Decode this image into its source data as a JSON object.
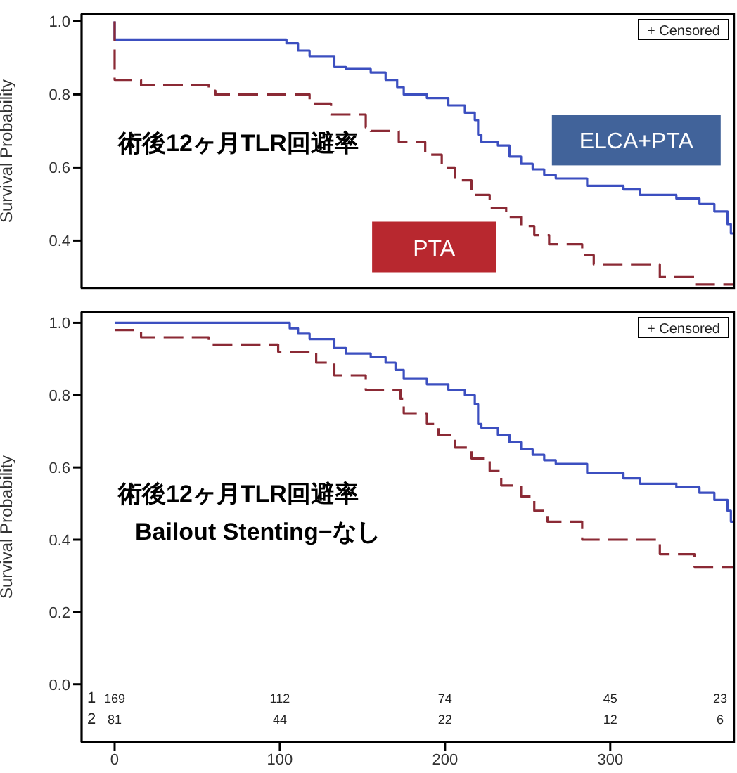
{
  "chart_data": [
    {
      "type": "step",
      "ylabel": "Survival Probability",
      "xlim": [
        -20,
        375
      ],
      "ylim": [
        0.27,
        1.02
      ],
      "yticks": [
        {
          "value": 0.4,
          "label": "0.4"
        },
        {
          "value": 0.6,
          "label": "0.6"
        },
        {
          "value": 0.8,
          "label": "0.8"
        },
        {
          "value": 1.0,
          "label": "1.0"
        }
      ],
      "tick_labels": "y",
      "annotations": [
        "+ Censored",
        "術後12ヶ月TLR回避率"
      ],
      "series": [
        {
          "name": "ELCA+PTA",
          "color": "#3c4fc0",
          "line_style": "solid",
          "x": [
            0,
            0,
            104,
            111,
            118,
            133,
            140,
            155,
            164,
            171,
            175,
            189,
            202,
            212,
            218,
            220,
            222,
            232,
            239,
            246,
            253,
            260,
            267,
            286,
            308,
            318,
            340,
            354,
            363,
            371,
            373,
            375
          ],
          "values": [
            1.0,
            0.95,
            0.94,
            0.92,
            0.905,
            0.875,
            0.87,
            0.86,
            0.84,
            0.82,
            0.8,
            0.79,
            0.77,
            0.75,
            0.73,
            0.69,
            0.67,
            0.66,
            0.63,
            0.61,
            0.595,
            0.58,
            0.57,
            0.55,
            0.54,
            0.525,
            0.515,
            0.5,
            0.48,
            0.445,
            0.42,
            0.42
          ]
        },
        {
          "name": "PTA",
          "color": "#8b2a35",
          "line_style": "dashed",
          "x": [
            0,
            0,
            16,
            57,
            61,
            118,
            131,
            152,
            155,
            172,
            188,
            198,
            206,
            216,
            227,
            237,
            246,
            254,
            263,
            283,
            290,
            330,
            351,
            375
          ],
          "values": [
            1.0,
            0.84,
            0.825,
            0.81,
            0.8,
            0.775,
            0.745,
            0.71,
            0.7,
            0.67,
            0.635,
            0.6,
            0.565,
            0.525,
            0.49,
            0.465,
            0.44,
            0.415,
            0.39,
            0.36,
            0.335,
            0.3,
            0.28,
            0.28
          ]
        }
      ]
    },
    {
      "type": "step",
      "ylabel": "Survival Probability",
      "xlim": [
        -20,
        375
      ],
      "ylim": [
        -0.16,
        1.03
      ],
      "xticks": [
        0,
        100,
        200,
        300
      ],
      "yticks": [
        {
          "value": 0,
          "label": "0.0"
        },
        {
          "value": 0.2,
          "label": "0.2"
        },
        {
          "value": 0.4,
          "label": "0.4"
        },
        {
          "value": 0.6,
          "label": "0.6"
        },
        {
          "value": 0.8,
          "label": "0.8"
        },
        {
          "value": 1.0,
          "label": "1.0"
        }
      ],
      "annotations": [
        "+ Censored",
        "術後12ヶ月TLR回避率",
        "Bailout Stenting−なし",
        "1",
        "169",
        "112",
        "74",
        "45",
        "23",
        "2",
        "81",
        "44",
        "22",
        "12",
        "6"
      ],
      "series": [
        {
          "color": "#3c4fc0",
          "line_style": "solid",
          "x": [
            0,
            106,
            111,
            118,
            133,
            140,
            155,
            164,
            170,
            175,
            189,
            202,
            212,
            218,
            220,
            222,
            232,
            239,
            246,
            253,
            260,
            267,
            286,
            308,
            318,
            340,
            354,
            363,
            371,
            373,
            375
          ],
          "values": [
            1.0,
            0.985,
            0.97,
            0.955,
            0.93,
            0.915,
            0.905,
            0.89,
            0.87,
            0.845,
            0.83,
            0.815,
            0.8,
            0.775,
            0.72,
            0.71,
            0.69,
            0.67,
            0.65,
            0.635,
            0.62,
            0.61,
            0.585,
            0.57,
            0.555,
            0.545,
            0.53,
            0.51,
            0.48,
            0.45,
            0.45
          ]
        },
        {
          "color": "#8b2a35",
          "line_style": "dashed",
          "x": [
            0,
            16,
            57,
            99,
            122,
            133,
            152,
            173,
            175,
            189,
            196,
            206,
            216,
            227,
            234,
            246,
            254,
            262,
            283,
            330,
            351,
            375
          ],
          "values": [
            0.98,
            0.96,
            0.94,
            0.92,
            0.89,
            0.855,
            0.815,
            0.79,
            0.75,
            0.72,
            0.69,
            0.655,
            0.625,
            0.59,
            0.55,
            0.52,
            0.48,
            0.45,
            0.4,
            0.36,
            0.325,
            0.325
          ]
        }
      ]
    }
  ]
}
